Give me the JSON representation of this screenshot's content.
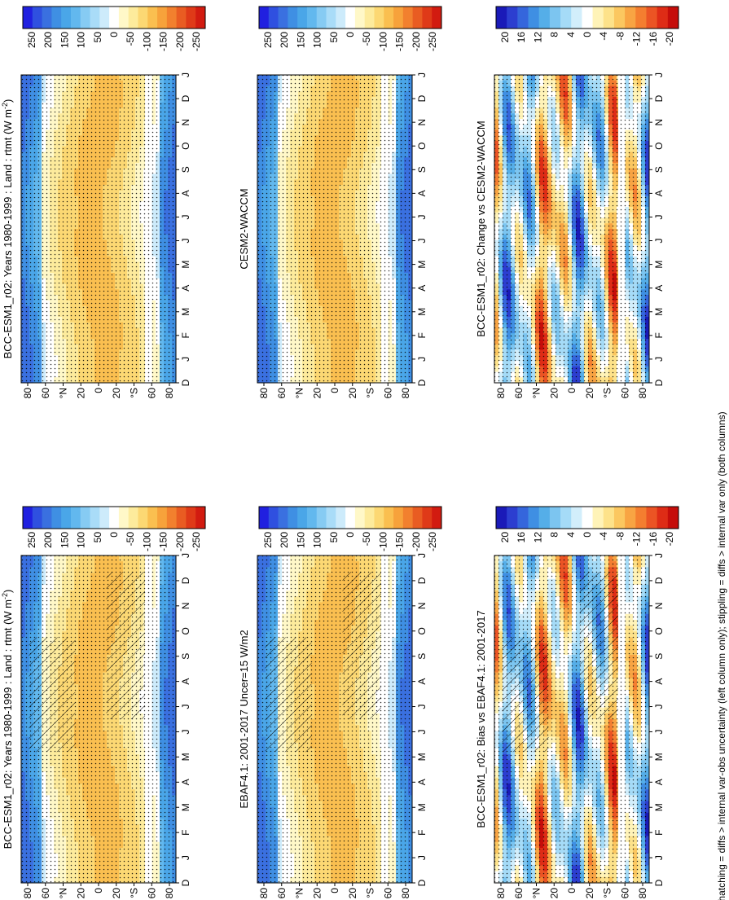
{
  "figure": {
    "footnote": "hatching = diffs > internal var-obs uncertainty (left column only); stippling = diffs > internal var only (both columns)"
  },
  "colors": {
    "abs_scale": [
      "#2020e0",
      "#2f50e0",
      "#3a70e0",
      "#3f8fe3",
      "#4aa6e8",
      "#62b8ee",
      "#86cbf3",
      "#a9dcf8",
      "#cdebfb",
      "#ffffff",
      "#fff8c8",
      "#fdeb9c",
      "#fcd873",
      "#fabf50",
      "#f7a23b",
      "#f2802e",
      "#e95c22",
      "#df3a18",
      "#d21b10"
    ],
    "diff_scale": [
      "#1a1ab8",
      "#2c3ed0",
      "#3566dc",
      "#3f8fe3",
      "#55aee8",
      "#7cc5f0",
      "#a5dbf7",
      "#d2eefb",
      "#ffffff",
      "#fff3b8",
      "#fde28a",
      "#fbc760",
      "#f8a443",
      "#f47e30",
      "#eb5424",
      "#de2c16",
      "#c50d0a"
    ]
  },
  "chart_data": [
    {
      "id": "bias_left_top",
      "type": "heatmap",
      "title": "BCC-ESM1_r02: Years 1980-1999 : Land : rtmt (W m",
      "title_superscript": "-2",
      "title_close": ")",
      "x": [
        "D",
        "J",
        "F",
        "M",
        "A",
        "M",
        "J",
        "J",
        "A",
        "S",
        "O",
        "N",
        "D",
        "J"
      ],
      "y": [
        "80",
        "60",
        "°N",
        "20",
        "0",
        "20",
        "°S",
        "60",
        "80"
      ],
      "colorbar_labels": [
        "250",
        "200",
        "150",
        "100",
        "50",
        "0",
        "-50",
        "-100",
        "-150",
        "-200",
        "-250"
      ],
      "hatching": true,
      "zrange": [
        -250,
        250
      ]
    },
    {
      "id": "model_right_top",
      "type": "heatmap",
      "title": "BCC-ESM1_r02: Years 1980-1999 : Land : rtmt (W m",
      "title_superscript": "-2",
      "title_close": ")",
      "x": [
        "D",
        "J",
        "F",
        "M",
        "A",
        "M",
        "J",
        "J",
        "A",
        "S",
        "O",
        "N",
        "D",
        "J"
      ],
      "y": [
        "80",
        "60",
        "°N",
        "20",
        "0",
        "20",
        "°S",
        "60",
        "80"
      ],
      "colorbar_labels": [
        "250",
        "200",
        "150",
        "100",
        "50",
        "0",
        "-50",
        "-100",
        "-150",
        "-200",
        "-250"
      ],
      "hatching": false,
      "zrange": [
        -250,
        250
      ]
    },
    {
      "id": "obs_left_mid",
      "type": "heatmap",
      "title": "EBAF4.1: 2001-2017 Uncer=15 W/m2",
      "x": [
        "D",
        "J",
        "F",
        "M",
        "A",
        "M",
        "J",
        "J",
        "A",
        "S",
        "O",
        "N",
        "D",
        "J"
      ],
      "y": [
        "80",
        "60",
        "°N",
        "20",
        "0",
        "20",
        "°S",
        "60",
        "80"
      ],
      "colorbar_labels": [
        "250",
        "200",
        "150",
        "100",
        "50",
        "0",
        "-50",
        "-100",
        "-150",
        "-200",
        "-250"
      ],
      "hatching": true,
      "zrange": [
        -250,
        250
      ]
    },
    {
      "id": "ref_right_mid",
      "type": "heatmap",
      "title": "CESM2-WACCM",
      "x": [
        "D",
        "J",
        "F",
        "M",
        "A",
        "M",
        "J",
        "J",
        "A",
        "S",
        "O",
        "N",
        "D",
        "J"
      ],
      "y": [
        "80",
        "60",
        "°N",
        "20",
        "0",
        "20",
        "°S",
        "60",
        "80"
      ],
      "colorbar_labels": [
        "250",
        "200",
        "150",
        "100",
        "50",
        "0",
        "-50",
        "-100",
        "-150",
        "-200",
        "-250"
      ],
      "hatching": false,
      "zrange": [
        -250,
        250
      ]
    },
    {
      "id": "bias_left_bottom",
      "type": "heatmap",
      "title": "BCC-ESM1_r02: Bias vs EBAF4.1: 2001-2017",
      "x": [
        "D",
        "J",
        "F",
        "M",
        "A",
        "M",
        "J",
        "J",
        "A",
        "S",
        "O",
        "N",
        "D",
        "J"
      ],
      "y": [
        "80",
        "60",
        "°N",
        "20",
        "0",
        "20",
        "°S",
        "60",
        "80"
      ],
      "colorbar_labels": [
        "20",
        "16",
        "12",
        "8",
        "4",
        "0",
        "-4",
        "-8",
        "-12",
        "-16",
        "-20"
      ],
      "hatching": true,
      "zrange": [
        -20,
        20
      ]
    },
    {
      "id": "change_right_bottom",
      "type": "heatmap",
      "title": "BCC-ESM1_r02: Change vs CESM2-WACCM",
      "x": [
        "D",
        "J",
        "F",
        "M",
        "A",
        "M",
        "J",
        "J",
        "A",
        "S",
        "O",
        "N",
        "D",
        "J"
      ],
      "y": [
        "80",
        "60",
        "°N",
        "20",
        "0",
        "20",
        "°S",
        "60",
        "80"
      ],
      "colorbar_labels": [
        "20",
        "16",
        "12",
        "8",
        "4",
        "0",
        "-4",
        "-8",
        "-12",
        "-16",
        "-20"
      ],
      "hatching": false,
      "zrange": [
        -20,
        20
      ]
    }
  ]
}
